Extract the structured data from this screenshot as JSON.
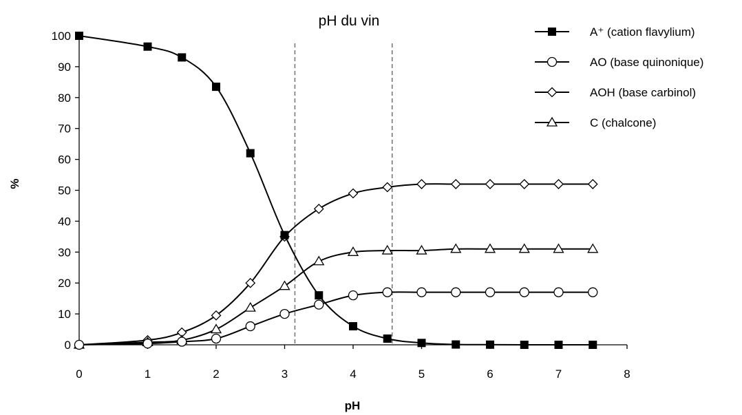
{
  "chart_data": {
    "type": "line",
    "title": "pH du vin",
    "xlabel": "pH",
    "ylabel": "%",
    "xlim": [
      0,
      8
    ],
    "ylim": [
      0,
      100
    ],
    "x_ticks": [
      0,
      1,
      2,
      3,
      4,
      5,
      6,
      7,
      8
    ],
    "y_ticks": [
      0,
      10,
      20,
      30,
      40,
      50,
      60,
      70,
      80,
      90,
      100
    ],
    "x": [
      0,
      1,
      1.5,
      2,
      2.5,
      3,
      3.5,
      4,
      4.5,
      5,
      5.5,
      6,
      6.5,
      7,
      7.5
    ],
    "reference_lines_x": [
      3.15,
      4.57
    ],
    "grid": false,
    "legend_position": "top-right",
    "series": [
      {
        "name": "A⁺ (cation flavylium)",
        "marker": "filled-square",
        "values": [
          100,
          96.5,
          93,
          83.5,
          62,
          35.5,
          16,
          6,
          2,
          0.6,
          0.1,
          0.05,
          0,
          0,
          0
        ]
      },
      {
        "name": "AO (base quinonique)",
        "marker": "open-circle",
        "values": [
          0,
          0.4,
          1,
          2,
          6,
          10,
          13,
          16,
          17,
          17,
          17,
          17,
          17,
          17,
          17
        ]
      },
      {
        "name": "AOH (base carbinol)",
        "marker": "open-diamond",
        "values": [
          0,
          1.5,
          4,
          9.5,
          20,
          35,
          44,
          49,
          51,
          52,
          52,
          52,
          52,
          52,
          52
        ]
      },
      {
        "name": "C (chalcone)",
        "marker": "open-triangle",
        "values": [
          0,
          0.8,
          1.5,
          5,
          12,
          19,
          27,
          30,
          30.5,
          30.5,
          31,
          31,
          31,
          31,
          31
        ]
      }
    ]
  }
}
